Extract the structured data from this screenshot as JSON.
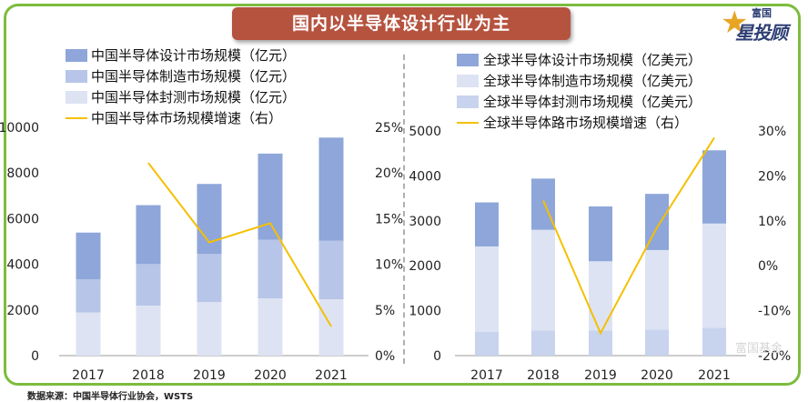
{
  "banner_title": "国内以半导体设计行业为主",
  "logo": {
    "top": "富国",
    "main": "星投顾"
  },
  "watermark": "富国基金",
  "source_note": "数据来源：中国半导体行业协会，WSTS",
  "colors": {
    "frame": "#7dbc3e",
    "banner": "#b5533f",
    "line": "#f5c000"
  },
  "chart_data": [
    {
      "type": "bar",
      "stacked": true,
      "categories": [
        "2017",
        "2018",
        "2019",
        "2020",
        "2021"
      ],
      "series": [
        {
          "name": "中国半导体封测市场规模（亿元）",
          "values": [
            1890,
            2190,
            2350,
            2510,
            2470
          ],
          "color": "#dde3f3"
        },
        {
          "name": "中国半导体制造市场规模（亿元）",
          "values": [
            1450,
            1820,
            2100,
            2560,
            2560
          ],
          "color": "#b7c5e8"
        },
        {
          "name": "中国半导体设计市场规模（亿元）",
          "values": [
            2050,
            2580,
            3070,
            3780,
            4520
          ],
          "color": "#8ea6d9"
        }
      ],
      "line": {
        "name": "中国半导体市场规模增速（右）",
        "values": [
          null,
          21.1,
          12.4,
          14.5,
          3.2
        ],
        "color": "#f5c000"
      },
      "legend_order": [
        "中国半导体设计市场规模（亿元）",
        "中国半导体制造市场规模（亿元）",
        "中国半导体封测市场规模（亿元）",
        "中国半导体市场规模增速（右）"
      ],
      "ylim": [
        0,
        10000
      ],
      "y_ticks": [
        "0",
        "2000",
        "4000",
        "6000",
        "8000",
        "10000"
      ],
      "y2lim": [
        0,
        25
      ],
      "y2_ticks": [
        "0%",
        "5%",
        "10%",
        "15%",
        "20%",
        "25%"
      ]
    },
    {
      "type": "bar",
      "stacked": true,
      "categories": [
        "2017",
        "2018",
        "2019",
        "2020",
        "2021"
      ],
      "series": [
        {
          "name": "全球半导体封测市场规模（亿美元）",
          "values": [
            530,
            560,
            560,
            580,
            620
          ],
          "color": "#c8d3ee"
        },
        {
          "name": "全球半导体制造市场规模（亿美元）",
          "values": [
            1900,
            2240,
            1540,
            1770,
            2320
          ],
          "color": "#dde3f3"
        },
        {
          "name": "全球半导体设计市场规模（亿美元）",
          "values": [
            980,
            1140,
            1220,
            1250,
            1630
          ],
          "color": "#8ea6d9"
        }
      ],
      "line": {
        "name": "全球半导体路市场规模增速（右）",
        "values": [
          null,
          14.5,
          -15.0,
          8.5,
          28.5
        ],
        "color": "#f5c000"
      },
      "legend_order": [
        "全球半导体设计市场规模（亿美元）",
        "全球半导体制造市场规模（亿美元）",
        "全球半导体封测市场规模（亿美元）",
        "全球半导体路市场规模增速（右）"
      ],
      "ylim": [
        0,
        5000
      ],
      "y_ticks": [
        "0",
        "1000",
        "2000",
        "3000",
        "4000",
        "5000"
      ],
      "y2lim": [
        -20,
        30
      ],
      "y2_ticks": [
        "-20%",
        "-10%",
        "0%",
        "10%",
        "20%",
        "30%"
      ]
    }
  ]
}
